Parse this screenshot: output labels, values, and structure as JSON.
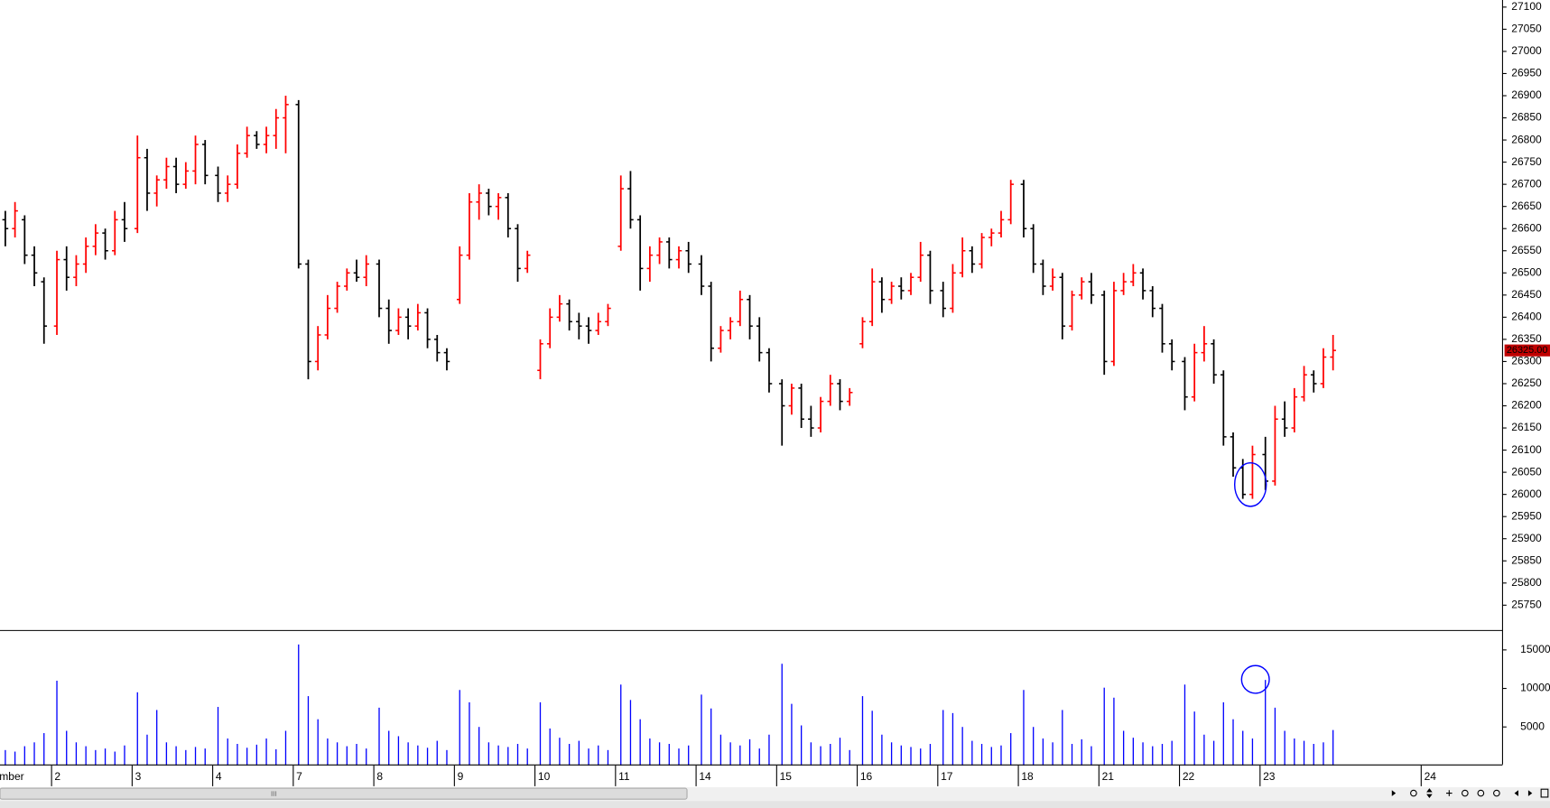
{
  "chart_data": [
    {
      "type": "ohlc",
      "up_color": "#ff0000",
      "down_color": "#000000",
      "xlim": [
        0.36,
        19.01
      ],
      "ylim": [
        25694,
        27116
      ],
      "yticks": [
        25750,
        25800,
        25850,
        25900,
        25950,
        26000,
        26050,
        26100,
        26150,
        26200,
        26250,
        26300,
        26350,
        26400,
        26450,
        26500,
        26550,
        26600,
        26650,
        26700,
        26750,
        26800,
        26850,
        26900,
        26950,
        27000,
        27050,
        27100
      ],
      "last_price": {
        "value": 26325,
        "label": "26325.00"
      },
      "x": [
        0.42,
        0.54,
        0.66,
        0.78,
        0.9,
        1.06,
        1.18,
        1.3,
        1.42,
        1.54,
        1.66,
        1.78,
        1.9,
        2.06,
        2.18,
        2.3,
        2.42,
        2.54,
        2.66,
        2.78,
        2.9,
        3.06,
        3.18,
        3.3,
        3.42,
        3.54,
        3.66,
        3.78,
        3.9,
        4.06,
        4.18,
        4.3,
        4.42,
        4.54,
        4.66,
        4.78,
        4.9,
        5.06,
        5.18,
        5.3,
        5.42,
        5.54,
        5.66,
        5.78,
        5.9,
        6.06,
        6.18,
        6.3,
        6.42,
        6.54,
        6.66,
        6.78,
        6.9,
        7.06,
        7.18,
        7.3,
        7.42,
        7.54,
        7.66,
        7.78,
        7.9,
        8.06,
        8.18,
        8.3,
        8.42,
        8.54,
        8.66,
        8.78,
        8.9,
        9.06,
        9.18,
        9.3,
        9.42,
        9.54,
        9.66,
        9.78,
        9.9,
        10.06,
        10.18,
        10.3,
        10.42,
        10.54,
        10.66,
        10.78,
        10.9,
        11.06,
        11.18,
        11.3,
        11.42,
        11.54,
        11.66,
        11.78,
        11.9,
        12.06,
        12.18,
        12.3,
        12.42,
        12.54,
        12.66,
        12.78,
        12.9,
        13.06,
        13.18,
        13.3,
        13.42,
        13.54,
        13.66,
        13.78,
        13.9,
        14.06,
        14.18,
        14.3,
        14.42,
        14.54,
        14.66,
        14.78,
        14.9,
        15.06,
        15.18,
        15.3,
        15.42,
        15.54,
        15.66,
        15.78,
        15.9,
        16.06,
        16.18,
        16.3,
        16.42,
        16.54,
        16.66,
        16.78,
        16.9
      ],
      "open": [
        26620,
        26600,
        26620,
        26540,
        26480,
        26380,
        26530,
        26490,
        26520,
        26560,
        26590,
        26550,
        26620,
        26600,
        26760,
        26680,
        26710,
        26740,
        26700,
        26730,
        26790,
        26720,
        26680,
        26700,
        26770,
        26810,
        26790,
        26810,
        26850,
        26880,
        26520,
        26300,
        26360,
        26420,
        26470,
        26500,
        26490,
        26520,
        26420,
        26370,
        26400,
        26380,
        26410,
        26350,
        26320,
        26440,
        26540,
        26660,
        26680,
        26650,
        26670,
        26600,
        26510,
        26280,
        26340,
        26400,
        26430,
        26390,
        26380,
        26370,
        26390,
        26560,
        26690,
        26620,
        26510,
        26540,
        26570,
        26530,
        26550,
        26520,
        26470,
        26330,
        26370,
        26390,
        26440,
        26380,
        26320,
        26250,
        26200,
        26240,
        26170,
        26150,
        26210,
        26250,
        26210,
        26340,
        26390,
        26480,
        26440,
        26470,
        26460,
        26490,
        26540,
        26460,
        26420,
        26500,
        26550,
        26520,
        26580,
        26590,
        26620,
        26700,
        26600,
        26520,
        26470,
        26490,
        26380,
        26450,
        26480,
        26450,
        26300,
        26460,
        26480,
        26500,
        26460,
        26420,
        26340,
        26300,
        26220,
        26320,
        26340,
        26270,
        26130,
        26060,
        26000,
        26090,
        26030,
        26170,
        26150,
        26220,
        26270,
        26250,
        26310
      ],
      "high": [
        26640,
        26660,
        26630,
        26560,
        26490,
        26550,
        26560,
        26540,
        26580,
        26610,
        26600,
        26640,
        26660,
        26810,
        26780,
        26720,
        26760,
        26760,
        26750,
        26810,
        26800,
        26740,
        26720,
        26790,
        26830,
        26820,
        26830,
        26870,
        26900,
        26890,
        26530,
        26380,
        26450,
        26480,
        26510,
        26530,
        26540,
        26530,
        26440,
        26420,
        26420,
        26430,
        26420,
        26360,
        26330,
        26560,
        26680,
        26700,
        26690,
        26680,
        26680,
        26610,
        26550,
        26350,
        26420,
        26450,
        26440,
        26410,
        26400,
        26410,
        26430,
        26720,
        26730,
        26630,
        26560,
        26580,
        26580,
        26560,
        26570,
        26540,
        26480,
        26380,
        26400,
        26460,
        26450,
        26400,
        26330,
        26260,
        26250,
        26250,
        26200,
        26220,
        26270,
        26260,
        26240,
        26400,
        26510,
        26490,
        26480,
        26490,
        26500,
        26570,
        26550,
        26480,
        26520,
        26580,
        26560,
        26590,
        26600,
        26640,
        26710,
        26710,
        26610,
        26530,
        26510,
        26500,
        26460,
        26490,
        26500,
        26460,
        26480,
        26500,
        26520,
        26510,
        26470,
        26430,
        26350,
        26310,
        26340,
        26380,
        26350,
        26280,
        26140,
        26080,
        26110,
        26130,
        26200,
        26210,
        26240,
        26290,
        26280,
        26330,
        26360
      ],
      "low": [
        26560,
        26580,
        26520,
        26470,
        26340,
        26360,
        26460,
        26470,
        26500,
        26540,
        26530,
        26540,
        26570,
        26590,
        26640,
        26650,
        26690,
        26680,
        26690,
        26700,
        26700,
        26660,
        26660,
        26690,
        26760,
        26780,
        26770,
        26780,
        26770,
        26510,
        26260,
        26280,
        26350,
        26410,
        26460,
        26480,
        26470,
        26400,
        26340,
        26360,
        26350,
        26370,
        26330,
        26300,
        26280,
        26430,
        26530,
        26620,
        26630,
        26620,
        26580,
        26480,
        26500,
        26260,
        26330,
        26390,
        26370,
        26350,
        26340,
        26360,
        26380,
        26550,
        26600,
        26460,
        26480,
        26520,
        26510,
        26510,
        26500,
        26450,
        26300,
        26320,
        26350,
        26380,
        26350,
        26300,
        26230,
        26110,
        26180,
        26150,
        26130,
        26140,
        26200,
        26190,
        26200,
        26330,
        26380,
        26410,
        26430,
        26440,
        26450,
        26480,
        26430,
        26400,
        26410,
        26490,
        26500,
        26510,
        26560,
        26580,
        26610,
        26580,
        26500,
        26450,
        26460,
        26350,
        26370,
        26440,
        26430,
        26270,
        26290,
        26450,
        26470,
        26440,
        26400,
        26320,
        26280,
        26190,
        26210,
        26300,
        26250,
        26110,
        26040,
        25990,
        25990,
        26010,
        26020,
        26130,
        26140,
        26210,
        26230,
        26240,
        26280
      ],
      "close": [
        26600,
        26640,
        26540,
        26500,
        26380,
        26530,
        26490,
        26520,
        26560,
        26590,
        26550,
        26620,
        26600,
        26760,
        26680,
        26710,
        26740,
        26700,
        26730,
        26790,
        26720,
        26680,
        26700,
        26770,
        26810,
        26790,
        26810,
        26850,
        26880,
        26520,
        26300,
        26360,
        26420,
        26470,
        26500,
        26490,
        26520,
        26420,
        26370,
        26400,
        26380,
        26410,
        26350,
        26320,
        26300,
        26540,
        26660,
        26680,
        26650,
        26670,
        26600,
        26510,
        26540,
        26340,
        26400,
        26430,
        26390,
        26380,
        26370,
        26390,
        26420,
        26690,
        26620,
        26510,
        26540,
        26570,
        26530,
        26550,
        26520,
        26470,
        26330,
        26370,
        26390,
        26440,
        26380,
        26320,
        26250,
        26200,
        26240,
        26170,
        26150,
        26210,
        26250,
        26210,
        26230,
        26390,
        26480,
        26440,
        26470,
        26460,
        26490,
        26540,
        26460,
        26420,
        26500,
        26550,
        26520,
        26580,
        26590,
        26620,
        26700,
        26600,
        26520,
        26470,
        26490,
        26380,
        26450,
        26480,
        26450,
        26300,
        26460,
        26480,
        26500,
        26460,
        26420,
        26340,
        26300,
        26220,
        26320,
        26340,
        26270,
        26130,
        26060,
        26000,
        26090,
        26030,
        26170,
        26150,
        26220,
        26270,
        26250,
        26310,
        26325
      ]
    },
    {
      "type": "bar",
      "color": "#0000ff",
      "xlim": [
        0.36,
        19.01
      ],
      "ylim": [
        0,
        17200
      ],
      "yticks": [
        5000,
        10000,
        15000
      ],
      "xticks": [
        {
          "value": 0,
          "label": "November"
        },
        {
          "value": 1,
          "label": "2"
        },
        {
          "value": 2,
          "label": "3"
        },
        {
          "value": 3,
          "label": "4"
        },
        {
          "value": 4,
          "label": "7"
        },
        {
          "value": 5,
          "label": "8"
        },
        {
          "value": 6,
          "label": "9"
        },
        {
          "value": 7,
          "label": "10"
        },
        {
          "value": 8,
          "label": "11"
        },
        {
          "value": 9,
          "label": "14"
        },
        {
          "value": 10,
          "label": "15"
        },
        {
          "value": 11,
          "label": "16"
        },
        {
          "value": 12,
          "label": "17"
        },
        {
          "value": 13,
          "label": "18"
        },
        {
          "value": 14,
          "label": "21"
        },
        {
          "value": 15,
          "label": "22"
        },
        {
          "value": 16,
          "label": "23"
        },
        {
          "value": 18,
          "label": "24"
        }
      ],
      "x": [
        0.42,
        0.54,
        0.66,
        0.78,
        0.9,
        1.06,
        1.18,
        1.3,
        1.42,
        1.54,
        1.66,
        1.78,
        1.9,
        2.06,
        2.18,
        2.3,
        2.42,
        2.54,
        2.66,
        2.78,
        2.9,
        3.06,
        3.18,
        3.3,
        3.42,
        3.54,
        3.66,
        3.78,
        3.9,
        4.06,
        4.18,
        4.3,
        4.42,
        4.54,
        4.66,
        4.78,
        4.9,
        5.06,
        5.18,
        5.3,
        5.42,
        5.54,
        5.66,
        5.78,
        5.9,
        6.06,
        6.18,
        6.3,
        6.42,
        6.54,
        6.66,
        6.78,
        6.9,
        7.06,
        7.18,
        7.3,
        7.42,
        7.54,
        7.66,
        7.78,
        7.9,
        8.06,
        8.18,
        8.3,
        8.42,
        8.54,
        8.66,
        8.78,
        8.9,
        9.06,
        9.18,
        9.3,
        9.42,
        9.54,
        9.66,
        9.78,
        9.9,
        10.06,
        10.18,
        10.3,
        10.42,
        10.54,
        10.66,
        10.78,
        10.9,
        11.06,
        11.18,
        11.3,
        11.42,
        11.54,
        11.66,
        11.78,
        11.9,
        12.06,
        12.18,
        12.3,
        12.42,
        12.54,
        12.66,
        12.78,
        12.9,
        13.06,
        13.18,
        13.3,
        13.42,
        13.54,
        13.66,
        13.78,
        13.9,
        14.06,
        14.18,
        14.3,
        14.42,
        14.54,
        14.66,
        14.78,
        14.9,
        15.06,
        15.18,
        15.3,
        15.42,
        15.54,
        15.66,
        15.78,
        15.9,
        16.06,
        16.18,
        16.3,
        16.42,
        16.54,
        16.66,
        16.78,
        16.9
      ],
      "values": [
        2000,
        1800,
        2500,
        3000,
        4200,
        11000,
        4500,
        3000,
        2500,
        2000,
        2200,
        1800,
        2600,
        9500,
        4000,
        7200,
        3000,
        2500,
        2000,
        2400,
        2200,
        7600,
        3500,
        2800,
        2300,
        2700,
        3500,
        2100,
        4500,
        15700,
        9000,
        6000,
        3500,
        3000,
        2500,
        2800,
        2200,
        7500,
        4500,
        3800,
        3000,
        2600,
        2300,
        3200,
        2000,
        9800,
        8200,
        5000,
        3000,
        2600,
        2400,
        2800,
        2200,
        8200,
        4800,
        3600,
        2800,
        3200,
        2200,
        2600,
        2000,
        10500,
        8500,
        6000,
        3500,
        3000,
        2800,
        2200,
        2600,
        9200,
        7400,
        4000,
        3000,
        2600,
        3400,
        2200,
        4000,
        13200,
        8000,
        5200,
        3000,
        2500,
        2800,
        3600,
        2000,
        9000,
        7100,
        4000,
        3000,
        2600,
        2400,
        2200,
        2800,
        7200,
        6800,
        5000,
        3200,
        2800,
        2400,
        2600,
        4200,
        9800,
        5000,
        3500,
        3000,
        7200,
        2800,
        3400,
        2500,
        10100,
        8800,
        4500,
        3600,
        3000,
        2500,
        2800,
        3200,
        10500,
        7000,
        4000,
        3200,
        8200,
        6000,
        4500,
        3500,
        11100,
        7500,
        4500,
        3500,
        3200,
        2800,
        3000,
        4600
      ]
    }
  ]
}
